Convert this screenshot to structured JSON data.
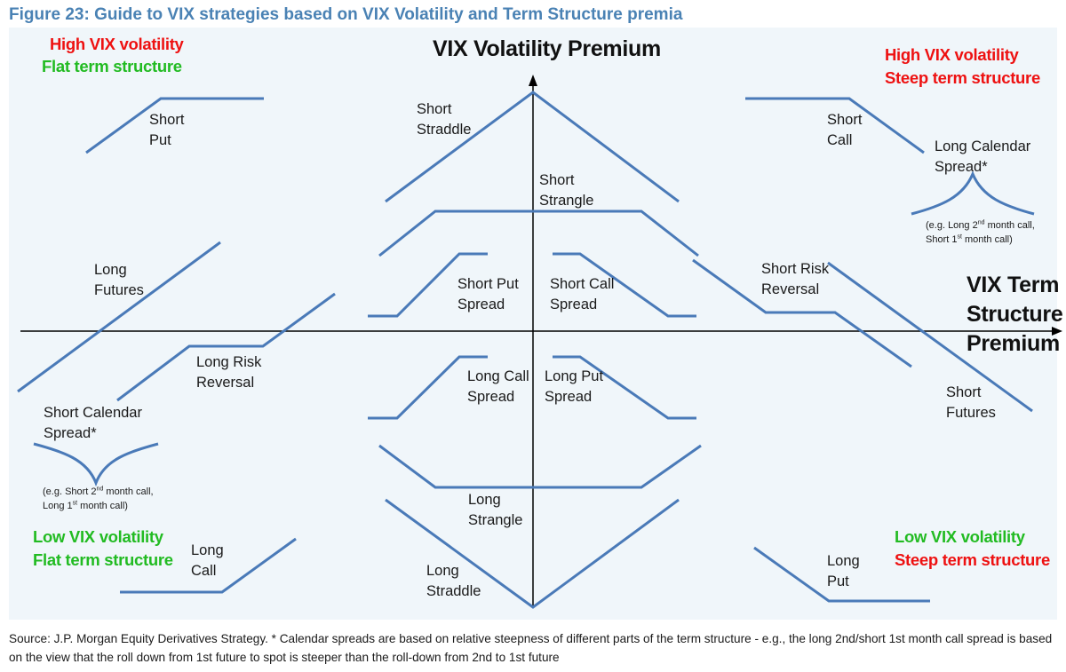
{
  "figure_title": "Figure 23: Guide to VIX strategies based on VIX Volatility and Term Structure premia",
  "axes": {
    "y_title": "VIX Volatility Premium",
    "x_title_lines": [
      "VIX Term",
      "Structure",
      "Premium"
    ]
  },
  "corners": {
    "top_left": [
      "High VIX volatility",
      "Flat term structure"
    ],
    "top_right": [
      "High VIX volatility",
      "Steep term structure"
    ],
    "bottom_left": [
      "Low VIX volatility",
      "Flat term structure"
    ],
    "bottom_right": [
      "Low VIX volatility",
      "Steep term structure"
    ]
  },
  "strategies": {
    "short_put": [
      "Short",
      "Put"
    ],
    "short_straddle": [
      "Short",
      "Straddle"
    ],
    "short_call": [
      "Short",
      "Call"
    ],
    "long_calendar": [
      "Long Calendar",
      "Spread*"
    ],
    "long_calendar_note": {
      "line1_a": "(e.g. Long 2",
      "line1_sup": "nd",
      "line1_b": " month call,",
      "line2_a": "Short 1",
      "line2_sup": "st",
      "line2_b": " month call)"
    },
    "short_strangle": [
      "Short",
      "Strangle"
    ],
    "long_futures": [
      "Long",
      "Futures"
    ],
    "short_put_spread": [
      "Short Put",
      "Spread"
    ],
    "short_call_spread": [
      "Short Call",
      "Spread"
    ],
    "short_risk_reversal": [
      "Short Risk",
      "Reversal"
    ],
    "long_risk_reversal": [
      "Long Risk",
      "Reversal"
    ],
    "long_call_spread": [
      "Long Call",
      "Spread"
    ],
    "long_put_spread": [
      "Long Put",
      "Spread"
    ],
    "short_futures": [
      "Short",
      "Futures"
    ],
    "short_calendar": [
      "Short Calendar",
      "Spread*"
    ],
    "short_calendar_note": {
      "line1_a": "(e.g. Short 2",
      "line1_sup": "nd",
      "line1_b": " month  call,",
      "line2_a": "Long 1",
      "line2_sup": "st",
      "line2_b": "  month  call)"
    },
    "long_strangle": [
      "Long",
      "Strangle"
    ],
    "long_call": [
      "Long",
      "Call"
    ],
    "long_straddle": [
      "Long",
      "Straddle"
    ],
    "long_put": [
      "Long",
      "Put"
    ]
  },
  "source": "Source: J.P. Morgan Equity Derivatives Strategy.  * Calendar spreads are based on relative steepness of different parts of the term structure - e.g., the long 2nd/short 1st month call spread is based on the view that the roll down from 1st future to spot is steeper than the roll-down from 2nd to 1st future",
  "colors": {
    "title": "#4a82b4",
    "panel_bg": "#f0f6fa",
    "payoff_line": "#4a7ab8",
    "axis": "#000000",
    "red": "#ee1111",
    "green": "#22bb22"
  }
}
